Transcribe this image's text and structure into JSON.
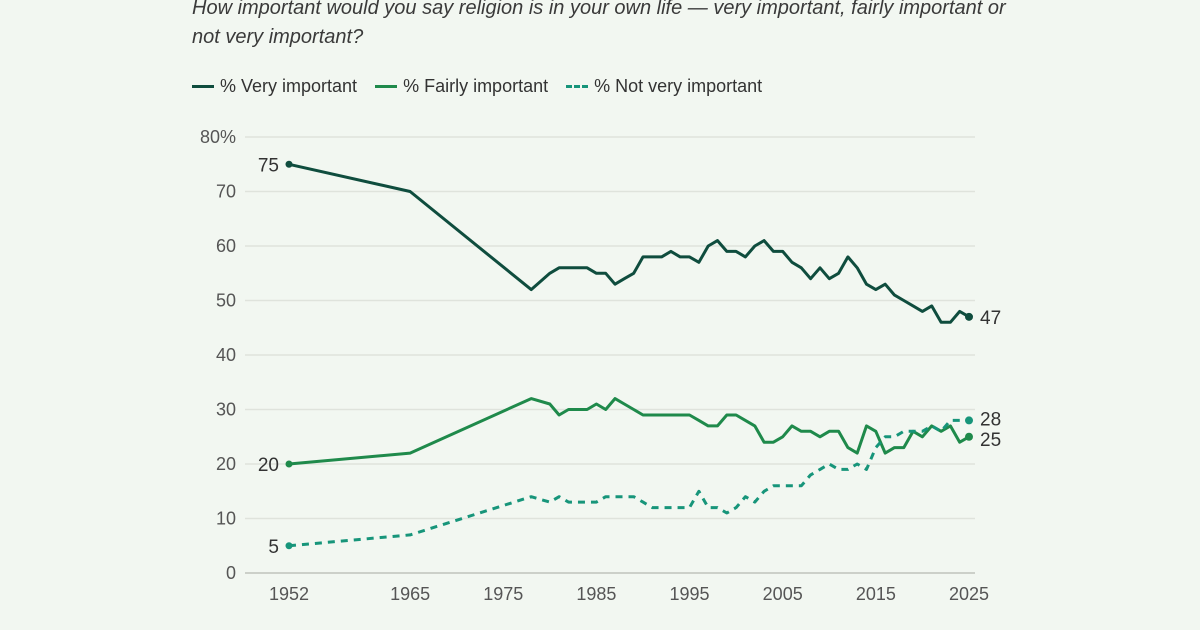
{
  "chart_data": {
    "type": "line",
    "title": "How important would you say religion is in your own life — very important, fairly important or not very important?",
    "xlabel": "",
    "ylabel": "",
    "ylim": [
      0,
      80
    ],
    "xlim": [
      1952,
      2025
    ],
    "y_ticks": [
      "0",
      "10",
      "20",
      "30",
      "40",
      "50",
      "60",
      "70",
      "80%"
    ],
    "x_ticks": [
      "1952",
      "1965",
      "1975",
      "1985",
      "1995",
      "2005",
      "2015",
      "2025"
    ],
    "grid": "horizontal",
    "legend_position": "top-left",
    "colors": {
      "very": "#0f4d3e",
      "fairly": "#1f8a4b",
      "not": "#17957a",
      "grid": "#dfe3dc",
      "background": "#f2f7f1"
    },
    "series": [
      {
        "name": "% Very important",
        "style": "solid",
        "color": "#0f4d3e",
        "x": [
          1952,
          1965,
          1978,
          1980,
          1981,
          1983,
          1984,
          1985,
          1986,
          1987,
          1988,
          1989,
          1990,
          1991,
          1992,
          1993,
          1994,
          1995,
          1996,
          1997,
          1998,
          1999,
          2000,
          2001,
          2002,
          2003,
          2004,
          2005,
          2006,
          2007,
          2008,
          2009,
          2010,
          2011,
          2012,
          2013,
          2014,
          2015,
          2016,
          2017,
          2018,
          2019,
          2020,
          2021,
          2022,
          2023,
          2024,
          2025
        ],
        "y": [
          75,
          70,
          52,
          55,
          56,
          56,
          56,
          55,
          55,
          53,
          54,
          55,
          58,
          58,
          58,
          59,
          58,
          58,
          57,
          60,
          61,
          59,
          59,
          58,
          60,
          61,
          59,
          59,
          57,
          56,
          54,
          56,
          54,
          55,
          58,
          56,
          53,
          52,
          53,
          51,
          50,
          49,
          48,
          49,
          46,
          46,
          48,
          47
        ],
        "labels": {
          "start": "75",
          "end": "47"
        }
      },
      {
        "name": "% Fairly important",
        "style": "solid",
        "color": "#1f8a4b",
        "x": [
          1952,
          1965,
          1978,
          1980,
          1981,
          1982,
          1984,
          1985,
          1986,
          1987,
          1988,
          1989,
          1990,
          1995,
          1996,
          1997,
          1998,
          1999,
          2000,
          2001,
          2002,
          2003,
          2004,
          2005,
          2006,
          2007,
          2008,
          2009,
          2010,
          2011,
          2012,
          2013,
          2014,
          2015,
          2016,
          2017,
          2018,
          2019,
          2020,
          2021,
          2022,
          2023,
          2024,
          2025
        ],
        "y": [
          20,
          22,
          32,
          31,
          29,
          30,
          30,
          31,
          30,
          32,
          31,
          30,
          29,
          29,
          28,
          27,
          27,
          29,
          29,
          28,
          27,
          24,
          24,
          25,
          27,
          26,
          26,
          25,
          26,
          26,
          23,
          22,
          27,
          26,
          22,
          23,
          23,
          26,
          25,
          27,
          26,
          27,
          24,
          25
        ],
        "labels": {
          "start": "20",
          "end": "25"
        }
      },
      {
        "name": "% Not very important",
        "style": "dashed",
        "color": "#17957a",
        "x": [
          1952,
          1965,
          1978,
          1980,
          1981,
          1982,
          1984,
          1985,
          1986,
          1988,
          1989,
          1990,
          1991,
          1992,
          1994,
          1995,
          1996,
          1997,
          1998,
          1999,
          2000,
          2001,
          2002,
          2003,
          2004,
          2006,
          2007,
          2008,
          2009,
          2010,
          2011,
          2012,
          2013,
          2014,
          2015,
          2016,
          2017,
          2018,
          2019,
          2020,
          2021,
          2022,
          2023,
          2024,
          2025
        ],
        "y": [
          5,
          7,
          14,
          13,
          14,
          13,
          13,
          13,
          14,
          14,
          14,
          13,
          12,
          12,
          12,
          12,
          15,
          12,
          12,
          11,
          12,
          14,
          13,
          15,
          16,
          16,
          16,
          18,
          19,
          20,
          19,
          19,
          20,
          19,
          23,
          25,
          25,
          26,
          26,
          26,
          27,
          26,
          28,
          28,
          28
        ],
        "labels": {
          "start": "5",
          "end": "28"
        }
      }
    ]
  }
}
